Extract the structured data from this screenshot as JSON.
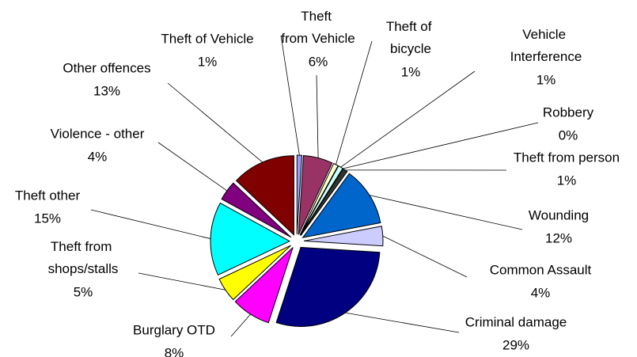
{
  "chart_data": {
    "type": "pie",
    "categories": [
      "Theft of Vehicle",
      "Theft from Vehicle",
      "Theft of bicycle",
      "Vehicle Interference",
      "Robbery",
      "Theft from person",
      "Wounding",
      "Common Assault",
      "Criminal damage",
      "Burglary OTD",
      "Theft from shops/stalls",
      "Theft other",
      "Violence - other",
      "Other offences"
    ],
    "values": [
      1,
      6,
      1,
      1,
      0,
      1,
      12,
      4,
      29,
      8,
      5,
      15,
      4,
      13
    ],
    "value_labels": [
      "1%",
      "6%",
      "1%",
      "1%",
      "0%",
      "1%",
      "12%",
      "4%",
      "29%",
      "8%",
      "5%",
      "15%",
      "4%",
      "13%"
    ],
    "colors": [
      "#9999ff",
      "#993366",
      "#ffffcc",
      "#ccffff",
      "#660066",
      "#333333",
      "#0066cc",
      "#ccccff",
      "#000080",
      "#ff00ff",
      "#ffff00",
      "#00ffff",
      "#800080",
      "#800000"
    ]
  }
}
